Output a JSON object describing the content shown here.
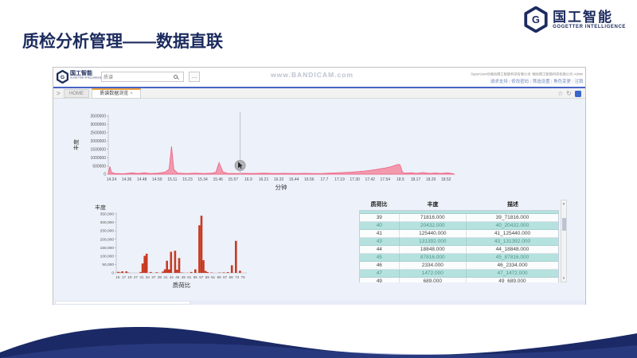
{
  "slide": {
    "title": "质检分析管理——数据直联",
    "brand": {
      "name": "国工智能",
      "subtitle": "GOGETTER INTELLIGENCE"
    }
  },
  "colors": {
    "navy": "#1c2b5e",
    "tab_accent_orange": "#f0a23c",
    "area_pink_fill": "#f4839b",
    "area_pink_line": "#ee5f80",
    "bar_red": "#c73a22",
    "table_teal": "#b5e2de",
    "footer_wave": "#1b2a66"
  },
  "app": {
    "topbar": {
      "search_value": "质谱",
      "more_label": "…",
      "watermark": "www.BANDICAM.com",
      "user_line": "SuperUser@烟台国工智能科技有限公司 '烟台国工智能科技有限公司 Admin",
      "links": [
        "请求支持",
        "修改密码",
        "筛选设置",
        "角色变更",
        "注销"
      ],
      "link_separator": "|"
    },
    "tabbar": {
      "collapse_chevron": ">",
      "home_tab": "HOME",
      "active_tab": "质谱数据浏览",
      "close_glyph": "×"
    },
    "table": {
      "headers": [
        "质荷比",
        "丰度",
        "描述"
      ],
      "rows": [
        [
          "39",
          "71816.000",
          "39_71816.000"
        ],
        [
          "40",
          "20432.000",
          "40_20432.000"
        ],
        [
          "41",
          "125440.000",
          "41_125440.000"
        ],
        [
          "43",
          "131392.000",
          "43_131392.000"
        ],
        [
          "44",
          "18848.000",
          "44_18848.000"
        ],
        [
          "45",
          "87816.000",
          "45_87816.000"
        ],
        [
          "46",
          "2334.000",
          "46_2334.000"
        ],
        [
          "47",
          "1472.000",
          "47_1472.000"
        ],
        [
          "49",
          "689.000",
          "49_689.000"
        ]
      ]
    }
  },
  "chart_data": [
    {
      "type": "area",
      "xlabel": "分钟",
      "ylabel": "丰度",
      "xlim": [
        14.18,
        18.62
      ],
      "ylim": [
        0,
        3500000
      ],
      "yticks": [
        0,
        500000,
        1000000,
        1500000,
        2000000,
        2500000,
        3000000,
        3500000
      ],
      "xtick_labels": [
        "14.24",
        "14.36",
        "14.48",
        "14.59",
        "15.11",
        "15.23",
        "15.34",
        "15.46",
        "15.57",
        "16.9",
        "16.21",
        "16.32",
        "16.44",
        "16.56",
        "17.7",
        "17.19",
        "17.30",
        "17.42",
        "17.54",
        "18.5",
        "18.17",
        "18.29",
        "18.52"
      ],
      "marker_minute": 15.87,
      "points": [
        [
          14.18,
          20000
        ],
        [
          14.2,
          470000
        ],
        [
          14.22,
          120000
        ],
        [
          14.27,
          40000
        ],
        [
          14.38,
          30000
        ],
        [
          14.49,
          80000
        ],
        [
          14.56,
          40000
        ],
        [
          14.65,
          90000
        ],
        [
          14.71,
          45000
        ],
        [
          14.82,
          60000
        ],
        [
          14.91,
          130000
        ],
        [
          14.96,
          300000
        ],
        [
          14.99,
          1680000
        ],
        [
          15.02,
          280000
        ],
        [
          15.07,
          70000
        ],
        [
          15.18,
          45000
        ],
        [
          15.29,
          65000
        ],
        [
          15.4,
          45000
        ],
        [
          15.51,
          60000
        ],
        [
          15.56,
          120000
        ],
        [
          15.6,
          700000
        ],
        [
          15.65,
          140000
        ],
        [
          15.71,
          55000
        ],
        [
          15.82,
          45000
        ],
        [
          15.93,
          55000
        ],
        [
          16.04,
          40000
        ],
        [
          16.18,
          60000
        ],
        [
          16.31,
          40000
        ],
        [
          16.44,
          55000
        ],
        [
          16.58,
          40000
        ],
        [
          16.71,
          55000
        ],
        [
          16.84,
          42000
        ],
        [
          16.93,
          50000
        ],
        [
          17.02,
          60000
        ],
        [
          17.11,
          80000
        ],
        [
          17.2,
          100000
        ],
        [
          17.29,
          125000
        ],
        [
          17.38,
          155000
        ],
        [
          17.47,
          190000
        ],
        [
          17.55,
          240000
        ],
        [
          17.64,
          300000
        ],
        [
          17.73,
          380000
        ],
        [
          17.8,
          450000
        ],
        [
          17.86,
          540000
        ],
        [
          17.9,
          600000
        ],
        [
          17.92,
          560000
        ],
        [
          17.95,
          130000
        ],
        [
          17.98,
          60000
        ],
        [
          18.07,
          85000
        ],
        [
          18.13,
          55000
        ],
        [
          18.22,
          100000
        ],
        [
          18.29,
          55000
        ],
        [
          18.38,
          75000
        ],
        [
          18.44,
          50000
        ],
        [
          18.53,
          90000
        ],
        [
          18.6,
          30000
        ]
      ]
    },
    {
      "type": "bar",
      "xlabel": "质荷比",
      "ylabel": "丰度",
      "xlim": [
        14,
        78
      ],
      "ylim": [
        0,
        350000
      ],
      "ytick_labels": [
        "0",
        "50,000",
        "100,000",
        "150,000",
        "200,000",
        "250,000",
        "300,000",
        "350,000"
      ],
      "xtick_labels": [
        "15",
        "17",
        "19",
        "27",
        "31",
        "34",
        "37",
        "39",
        "41",
        "44",
        "46",
        "49",
        "51",
        "55",
        "57",
        "59",
        "61",
        "65",
        "67",
        "69",
        "73",
        "75"
      ],
      "bars": [
        [
          15,
          6000
        ],
        [
          16,
          2500
        ],
        [
          17,
          9000
        ],
        [
          19,
          9000
        ],
        [
          20,
          2000
        ],
        [
          26,
          5000
        ],
        [
          27,
          56000
        ],
        [
          28,
          101000
        ],
        [
          29,
          114000
        ],
        [
          31,
          5000
        ],
        [
          34,
          4000
        ],
        [
          37,
          8000
        ],
        [
          38,
          21000
        ],
        [
          39,
          71816
        ],
        [
          40,
          20432
        ],
        [
          41,
          125440
        ],
        [
          43,
          131392
        ],
        [
          44,
          18848
        ],
        [
          45,
          87816
        ],
        [
          46,
          2334
        ],
        [
          47,
          1472
        ],
        [
          49,
          689
        ],
        [
          51,
          5000
        ],
        [
          53,
          21000
        ],
        [
          55,
          283000
        ],
        [
          56,
          340000
        ],
        [
          57,
          75000
        ],
        [
          58,
          12000
        ],
        [
          59,
          5000
        ],
        [
          61,
          2500
        ],
        [
          65,
          2000
        ],
        [
          67,
          3000
        ],
        [
          69,
          4500
        ],
        [
          71,
          45000
        ],
        [
          73,
          190000
        ],
        [
          75,
          13000
        ]
      ]
    }
  ]
}
